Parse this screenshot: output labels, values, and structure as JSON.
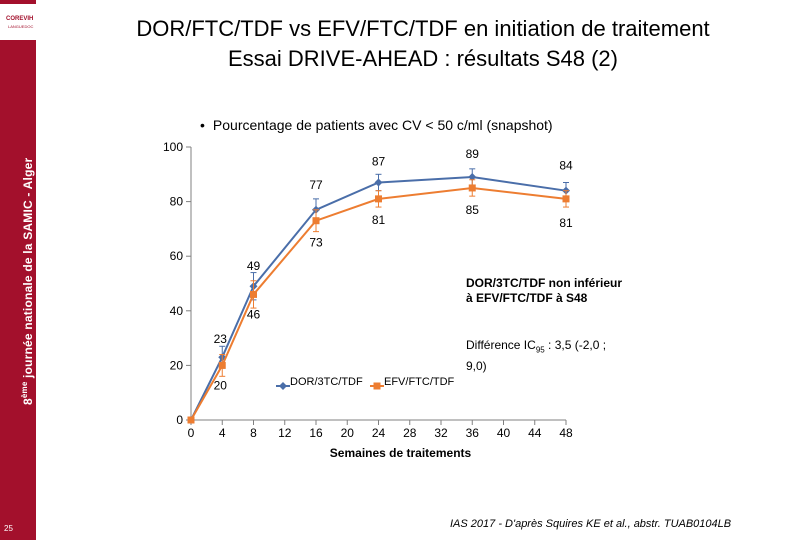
{
  "sidebar": {
    "vertical_text_prefix": "8",
    "vertical_text_sup": "ème",
    "vertical_text_main": " journée nationale de la SAMIC - Alger",
    "page_number": "25",
    "logo_text": "COREVIH",
    "logo_sub": "LANGUEDOC"
  },
  "title": {
    "line1": "DOR/FTC/TDF vs EFV/FTC/TDF en initiation de traitement",
    "line2": "Essai DRIVE-AHEAD : résultats S48 (2)"
  },
  "bullet": {
    "symbol": "•",
    "text": "Pourcentage de patients avec CV < 50 c/ml (snapshot)"
  },
  "annotations": {
    "noninferiority_line1": "DOR/3TC/TDF non inférieur",
    "noninferiority_line2": "à EFV/FTC/TDF à S48",
    "difference_line1_a": "Différence IC",
    "difference_line1_sub": "95",
    "difference_line1_b": " : 3,5 (-2,0 ;",
    "difference_line2": "9,0)"
  },
  "citation": "IAS 2017 - D'après Squires KE et al., abstr. TUAB0104LB",
  "colors": {
    "sidebar": "#a3102c",
    "series_dor": "#4a6ea9",
    "series_efv": "#ed7d31",
    "axis": "#808080"
  },
  "chart_data": {
    "type": "line",
    "title": "Pourcentage de patients avec CV < 50 c/ml (snapshot)",
    "xlabel": "Semaines de traitements",
    "ylabel": "",
    "xlim": [
      0,
      48
    ],
    "ylim": [
      0,
      100
    ],
    "xticks": [
      0,
      4,
      8,
      12,
      16,
      20,
      24,
      28,
      32,
      36,
      40,
      44,
      48
    ],
    "yticks": [
      0,
      20,
      40,
      60,
      80,
      100
    ],
    "series": [
      {
        "name": "DOR/3TC/TDF",
        "color": "#4a6ea9",
        "marker": "diamond",
        "x": [
          0,
          4,
          8,
          16,
          24,
          36,
          48
        ],
        "y": [
          0,
          23,
          49,
          77,
          87,
          89,
          84
        ],
        "error": [
          0,
          4,
          5,
          4,
          3,
          3,
          3
        ],
        "labels": [
          "",
          "23",
          "49",
          "77",
          "87",
          "89",
          "84"
        ]
      },
      {
        "name": "EFV/FTC/TDF",
        "color": "#ed7d31",
        "marker": "square",
        "x": [
          0,
          4,
          8,
          16,
          24,
          36,
          48
        ],
        "y": [
          0,
          20,
          46,
          73,
          81,
          85,
          81
        ],
        "error": [
          0,
          4,
          5,
          4,
          3,
          3,
          3
        ],
        "labels": [
          "",
          "20",
          "46",
          "73",
          "81",
          "85",
          "81"
        ]
      }
    ],
    "legend": [
      "DOR/3TC/TDF",
      "EFV/FTC/TDF"
    ]
  }
}
